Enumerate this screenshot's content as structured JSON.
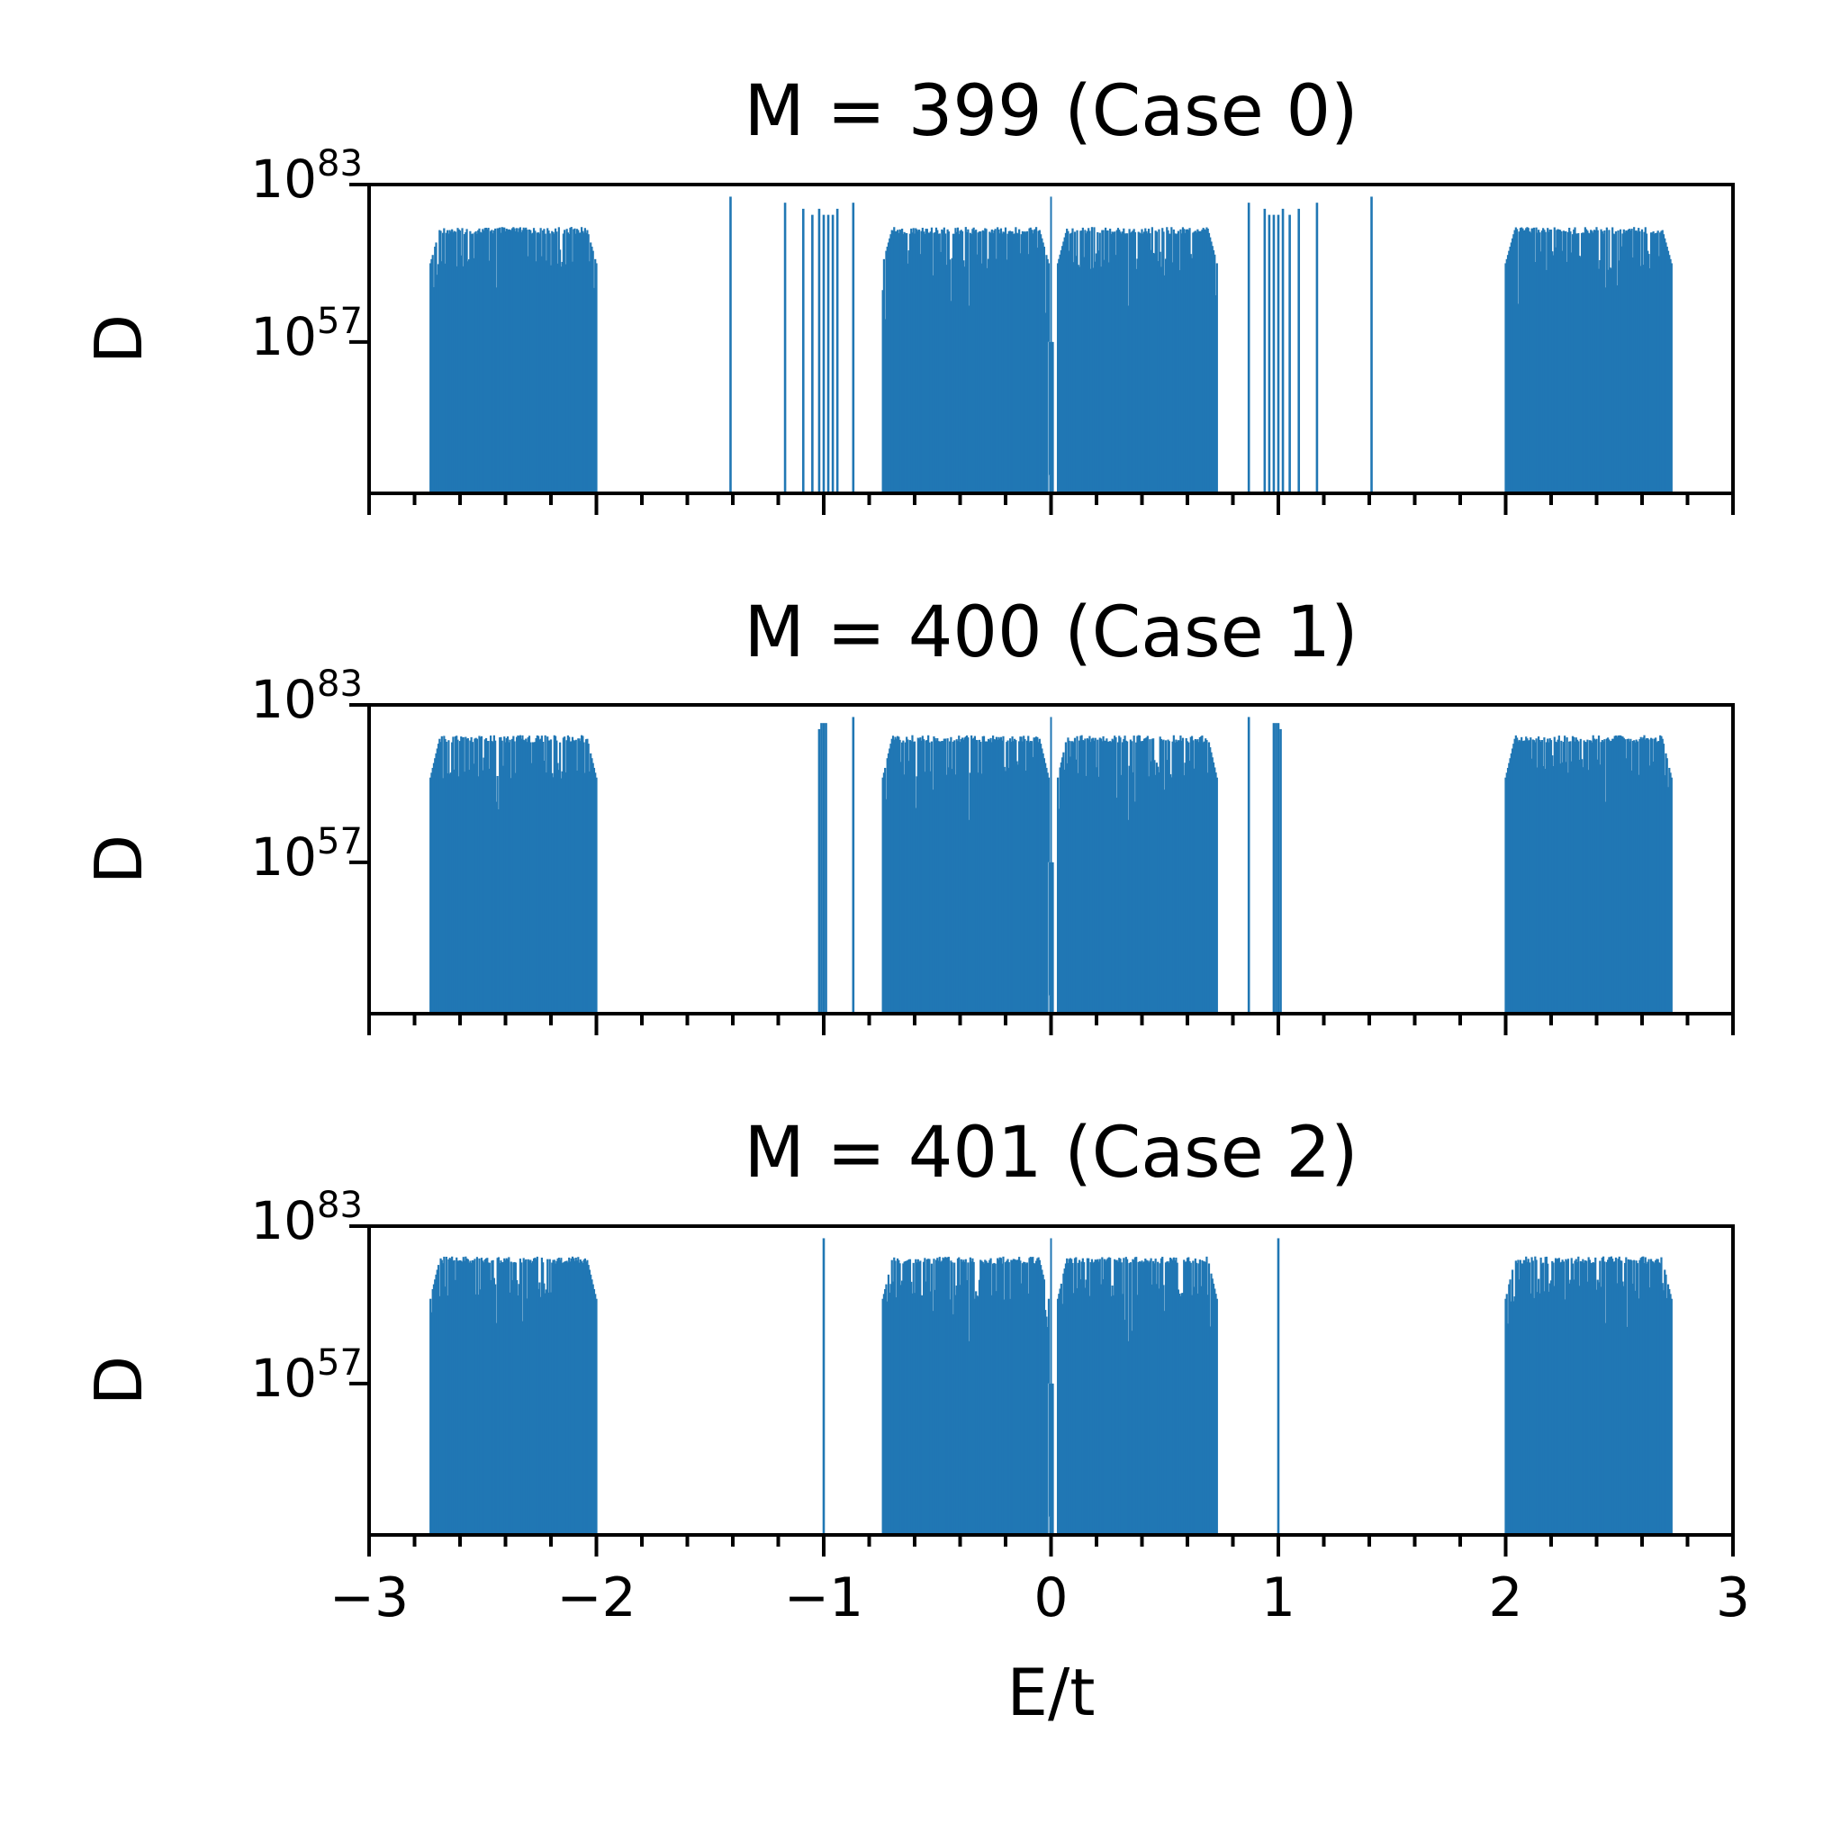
{
  "chart_data": [
    {
      "type": "bar",
      "title": "M = 399 (Case 0)",
      "ylabel": "D",
      "xlabel": "",
      "xlim": [
        -3,
        3
      ],
      "yscale": "log",
      "ylim_exponent": [
        32,
        83
      ],
      "yticks": [
        {
          "base": "10",
          "exp": "57",
          "value_exp": 57
        },
        {
          "base": "10",
          "exp": "83",
          "value_exp": 83
        }
      ],
      "xticks": [],
      "color": "#2077b4",
      "bands": [
        {
          "x_start": -2.73,
          "x_end": -2.0,
          "top_exp": 76,
          "edge_exp": 70,
          "dips": [
            {
              "x": -2.44,
              "exp": 66
            }
          ]
        },
        {
          "x_start": -0.74,
          "x_end": -0.01,
          "top_exp": 76,
          "edge_exp": 70,
          "dips": [
            {
              "x": -0.36,
              "exp": 63
            },
            {
              "x": -0.52,
              "exp": 68
            }
          ]
        },
        {
          "x_start": 0.03,
          "x_end": 0.73,
          "top_exp": 76,
          "edge_exp": 70,
          "dips": [
            {
              "x": 0.34,
              "exp": 63
            },
            {
              "x": 0.5,
              "exp": 68
            }
          ]
        },
        {
          "x_start": 2.0,
          "x_end": 2.73,
          "top_exp": 76,
          "edge_exp": 70,
          "dips": [
            {
              "x": 2.44,
              "exp": 66
            }
          ]
        }
      ],
      "center_spike": {
        "x": 0.0,
        "exp": 35,
        "shoulder_exp": 57,
        "peak_exp": 81
      },
      "spikes": [
        {
          "x": -1.41,
          "exp": 81
        },
        {
          "x": -1.17,
          "exp": 80
        },
        {
          "x": -1.09,
          "exp": 79
        },
        {
          "x": -1.05,
          "exp": 78
        },
        {
          "x": -1.02,
          "exp": 79
        },
        {
          "x": -1.0,
          "exp": 78
        },
        {
          "x": -0.98,
          "exp": 78
        },
        {
          "x": -0.96,
          "exp": 78
        },
        {
          "x": -0.94,
          "exp": 79
        },
        {
          "x": -0.87,
          "exp": 80
        },
        {
          "x": 0.87,
          "exp": 80
        },
        {
          "x": 0.94,
          "exp": 79
        },
        {
          "x": 0.96,
          "exp": 78
        },
        {
          "x": 0.98,
          "exp": 78
        },
        {
          "x": 1.0,
          "exp": 78
        },
        {
          "x": 1.02,
          "exp": 79
        },
        {
          "x": 1.05,
          "exp": 78
        },
        {
          "x": 1.09,
          "exp": 79
        },
        {
          "x": 1.17,
          "exp": 80
        },
        {
          "x": 1.41,
          "exp": 81
        }
      ]
    },
    {
      "type": "bar",
      "title": "M = 400 (Case 1)",
      "ylabel": "D",
      "xlabel": "",
      "xlim": [
        -3,
        3
      ],
      "yscale": "log",
      "ylim_exponent": [
        32,
        83
      ],
      "yticks": [
        {
          "base": "10",
          "exp": "57",
          "value_exp": 57
        },
        {
          "base": "10",
          "exp": "83",
          "value_exp": 83
        }
      ],
      "xticks": [],
      "color": "#2077b4",
      "bands": [
        {
          "x_start": -2.73,
          "x_end": -2.0,
          "top_exp": 78,
          "edge_exp": 71,
          "dips": [
            {
              "x": -2.44,
              "exp": 67
            }
          ]
        },
        {
          "x_start": -0.74,
          "x_end": -0.01,
          "top_exp": 78,
          "edge_exp": 71,
          "dips": [
            {
              "x": -0.36,
              "exp": 64
            },
            {
              "x": -0.52,
              "exp": 69
            }
          ]
        },
        {
          "x_start": 0.03,
          "x_end": 0.73,
          "top_exp": 78,
          "edge_exp": 71,
          "dips": [
            {
              "x": 0.34,
              "exp": 64
            },
            {
              "x": 0.5,
              "exp": 69
            }
          ]
        },
        {
          "x_start": 2.0,
          "x_end": 2.73,
          "top_exp": 78,
          "edge_exp": 71,
          "dips": [
            {
              "x": 2.44,
              "exp": 67
            }
          ]
        }
      ],
      "center_spike": {
        "x": 0.0,
        "exp": 35,
        "shoulder_exp": 57,
        "peak_exp": 81
      },
      "spikes": [
        {
          "x": -1.02,
          "exp": 79
        },
        {
          "x": -1.01,
          "exp": 80
        },
        {
          "x": -1.0,
          "exp": 80
        },
        {
          "x": -0.99,
          "exp": 80
        },
        {
          "x": -0.87,
          "exp": 81
        },
        {
          "x": 0.87,
          "exp": 81
        },
        {
          "x": 0.98,
          "exp": 80
        },
        {
          "x": 0.99,
          "exp": 80
        },
        {
          "x": 1.0,
          "exp": 80
        },
        {
          "x": 1.01,
          "exp": 79
        }
      ]
    },
    {
      "type": "bar",
      "title": "M = 401 (Case 2)",
      "ylabel": "D",
      "xlabel": "E/t",
      "xlim": [
        -3,
        3
      ],
      "yscale": "log",
      "ylim_exponent": [
        32,
        83
      ],
      "yticks": [
        {
          "base": "10",
          "exp": "57",
          "value_exp": 57
        },
        {
          "base": "10",
          "exp": "83",
          "value_exp": 83
        }
      ],
      "xticks": [
        "−3",
        "−2",
        "−1",
        "0",
        "1",
        "2",
        "3"
      ],
      "color": "#2077b4",
      "bands": [
        {
          "x_start": -2.73,
          "x_end": -2.0,
          "top_exp": 78,
          "edge_exp": 71,
          "dips": [
            {
              "x": -2.44,
              "exp": 67
            }
          ]
        },
        {
          "x_start": -0.74,
          "x_end": -0.01,
          "top_exp": 78,
          "edge_exp": 71,
          "dips": [
            {
              "x": -0.36,
              "exp": 64
            },
            {
              "x": -0.52,
              "exp": 69
            }
          ]
        },
        {
          "x_start": 0.03,
          "x_end": 0.73,
          "top_exp": 78,
          "edge_exp": 71,
          "dips": [
            {
              "x": 0.34,
              "exp": 64
            },
            {
              "x": 0.5,
              "exp": 69
            }
          ]
        },
        {
          "x_start": 2.0,
          "x_end": 2.73,
          "top_exp": 78,
          "edge_exp": 71,
          "dips": [
            {
              "x": 2.44,
              "exp": 67
            }
          ]
        }
      ],
      "center_spike": {
        "x": 0.0,
        "exp": 35,
        "shoulder_exp": 57,
        "peak_exp": 81
      },
      "spikes": [
        {
          "x": -1.0,
          "exp": 81
        },
        {
          "x": 1.0,
          "exp": 81
        }
      ]
    }
  ]
}
